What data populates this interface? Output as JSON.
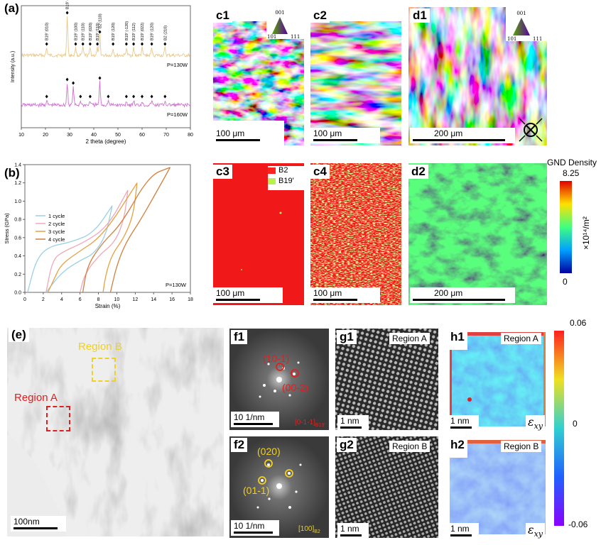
{
  "panel_a": {
    "label": "(a)",
    "chart_data": {
      "type": "line",
      "xlabel": "2 theta (degree)",
      "ylabel": "Intensity (a.u.)",
      "xlim": [
        10,
        80
      ],
      "xticks": [
        10,
        20,
        30,
        40,
        50,
        60,
        70,
        80
      ],
      "series": [
        {
          "name": "P=130W",
          "color": "#e8c98a",
          "peaks": [
            {
              "x": 20.5,
              "label": "B19' (010)"
            },
            {
              "x": 29.0,
              "label": "B19' (011)"
            },
            {
              "x": 32.5,
              "label": "B19' (100)"
            },
            {
              "x": 35.5,
              "label": "B19' (110)"
            },
            {
              "x": 38.5,
              "label": "B19' (020)"
            },
            {
              "x": 41.5,
              "label": "B19' (110)"
            },
            {
              "x": 42.5,
              "label": "B2 (110)"
            },
            {
              "x": 48.0,
              "label": "B19' (120)"
            },
            {
              "x": 53.5,
              "label": "B19' (-120)"
            },
            {
              "x": 56.5,
              "label": "B19' (112)"
            },
            {
              "x": 60.0,
              "label": "B19' (022)"
            },
            {
              "x": 64.0,
              "label": "B19' (120)"
            },
            {
              "x": 69.5,
              "label": "B2 (210)"
            }
          ]
        },
        {
          "name": "P=160W",
          "color": "#d070d0",
          "peaks": [
            {
              "x": 20.5
            },
            {
              "x": 29.0
            },
            {
              "x": 31.5
            },
            {
              "x": 34.5
            },
            {
              "x": 38.5
            },
            {
              "x": 42.5
            },
            {
              "x": 46.0
            },
            {
              "x": 53.5
            },
            {
              "x": 56.5
            },
            {
              "x": 60.0
            },
            {
              "x": 64.0
            },
            {
              "x": 69.5
            }
          ]
        }
      ],
      "label_130": "P=130W",
      "label_160": "P=160W"
    }
  },
  "panel_b": {
    "label": "(b)",
    "chart_data": {
      "type": "line",
      "xlabel": "Strain (%)",
      "ylabel": "Stress (GPa)",
      "xlim": [
        0,
        18
      ],
      "ylim": [
        0,
        1.4
      ],
      "xticks": [
        0,
        2,
        4,
        6,
        8,
        10,
        12,
        14,
        16,
        18
      ],
      "yticks": [
        0.0,
        0.2,
        0.4,
        0.6,
        0.8,
        1.0,
        1.2,
        1.4
      ],
      "annotation": "P=130W",
      "series": [
        {
          "name": "1 cycle",
          "color": "#9ad0e8",
          "load": [
            [
              0.3,
              0
            ],
            [
              1.2,
              0.35
            ],
            [
              2.5,
              0.5
            ],
            [
              5,
              0.55
            ],
            [
              7.5,
              0.65
            ],
            [
              9.5,
              0.95
            ]
          ],
          "unload": [
            [
              9.5,
              0.95
            ],
            [
              8.8,
              0.62
            ],
            [
              7.5,
              0.42
            ],
            [
              6.0,
              0.35
            ],
            [
              4.0,
              0.22
            ],
            [
              2.3,
              0.0
            ]
          ]
        },
        {
          "name": "2 cycle",
          "color": "#f0a8b8",
          "load": [
            [
              2.3,
              0
            ],
            [
              3.0,
              0.35
            ],
            [
              4.0,
              0.44
            ],
            [
              6.5,
              0.55
            ],
            [
              9,
              0.72
            ],
            [
              11.2,
              1.12
            ]
          ],
          "unload": [
            [
              11.2,
              1.12
            ],
            [
              10.8,
              0.8
            ],
            [
              9.8,
              0.55
            ],
            [
              8.0,
              0.4
            ],
            [
              6.5,
              0.2
            ],
            [
              6.0,
              0.0
            ]
          ]
        },
        {
          "name": "3 cycle",
          "color": "#e8a040",
          "load": [
            [
              2.5,
              0
            ],
            [
              3.2,
              0.15
            ],
            [
              3.9,
              0.3
            ],
            [
              5.5,
              0.42
            ],
            [
              8.5,
              0.62
            ],
            [
              12.2,
              1.2
            ]
          ],
          "unload": [
            [
              12.2,
              1.2
            ],
            [
              11.8,
              0.85
            ],
            [
              10.8,
              0.6
            ],
            [
              9.5,
              0.42
            ],
            [
              8.8,
              0.2
            ],
            [
              8.5,
              0.0
            ]
          ]
        },
        {
          "name": "4 cycle",
          "color": "#d08040",
          "load": [
            [
              6.3,
              0
            ],
            [
              6.8,
              0.3
            ],
            [
              8.5,
              0.55
            ],
            [
              10.5,
              0.75
            ],
            [
              13.5,
              1.28
            ],
            [
              15.8,
              1.37
            ]
          ],
          "unload": [
            [
              15.8,
              1.37
            ],
            [
              14.2,
              1.08
            ],
            [
              12.5,
              0.78
            ],
            [
              11.0,
              0.55
            ],
            [
              10.0,
              0.3
            ],
            [
              9.3,
              0.0
            ]
          ]
        }
      ]
    }
  },
  "maps": {
    "c1": {
      "label": "c1",
      "scale": "100 μm"
    },
    "c2": {
      "label": "c2",
      "scale": "100 μm"
    },
    "d1": {
      "label": "d1",
      "scale": "200 μm"
    },
    "c3": {
      "label": "c3",
      "scale": "100 μm"
    },
    "c4": {
      "label": "c4",
      "scale": "100 μm"
    },
    "d2": {
      "label": "d2",
      "scale": "200 μm"
    },
    "ipf_c": {
      "top": "001",
      "left": "101",
      "right": "111"
    },
    "ipf_d": {
      "top": "001",
      "left": "101",
      "right": "111"
    },
    "phase_legend": {
      "b2": "B2",
      "b19": "B19'",
      "b2_color": "#ff2020",
      "b19_color": "#b8f050"
    },
    "gnd": {
      "title": "GND Density",
      "max": "8.25",
      "min": "0",
      "unit": "×10¹⁴/m²"
    }
  },
  "tem": {
    "e": {
      "label": "(e)",
      "region_a": "Region A",
      "region_b": "Region B",
      "scale": "100nm"
    },
    "f1": {
      "label": "f1",
      "spot1": "(10-1)",
      "spot2": "(00-2)",
      "scale": "10 1/nm",
      "zone": "[0-1-1]",
      "zone_sub": "B19'"
    },
    "f2": {
      "label": "f2",
      "spot1": "(020)",
      "spot2": "(01-1)",
      "scale": "10 1/nm",
      "zone": "[100]",
      "zone_sub": "B2"
    },
    "g1": {
      "label": "g1",
      "region": "Region A",
      "scale": "1 nm"
    },
    "g2": {
      "label": "g2",
      "region": "Region B",
      "scale": "1 nm"
    },
    "h1": {
      "label": "h1",
      "region": "Region A",
      "scale": "1 nm",
      "strain": "ε",
      "strain_sub": "xy"
    },
    "h2": {
      "label": "h2",
      "region": "Region B",
      "scale": "1 nm",
      "strain": "ε",
      "strain_sub": "xy"
    },
    "colorbar": {
      "max": "0.06",
      "mid": "0",
      "min": "-0.06"
    }
  }
}
